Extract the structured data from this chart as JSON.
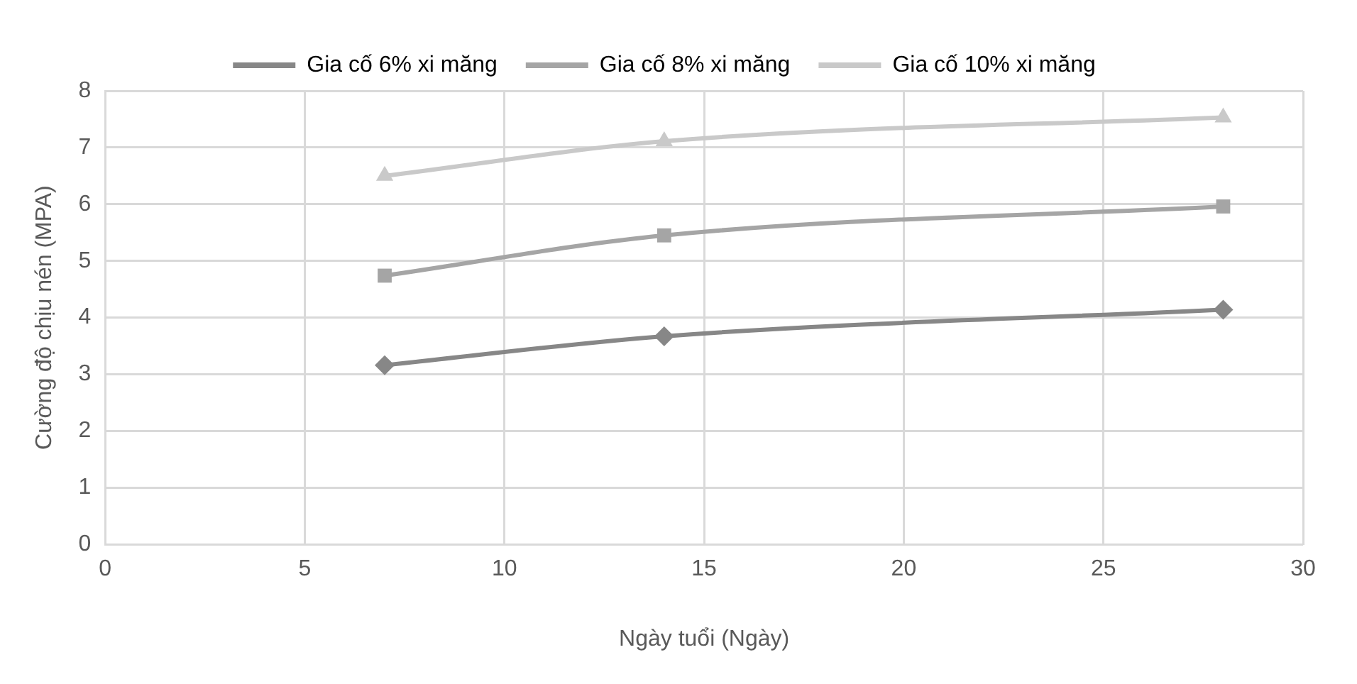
{
  "chart_data": {
    "type": "line",
    "xlabel": "Ngày tuổi (Ngày)",
    "ylabel": "Cường độ chịu nén (MPA)",
    "x": [
      7,
      14,
      28
    ],
    "xlim": [
      0,
      30
    ],
    "xticks": [
      0,
      5,
      10,
      15,
      20,
      25,
      30
    ],
    "ylim": [
      0,
      8
    ],
    "yticks": [
      0,
      1,
      2,
      3,
      4,
      5,
      6,
      7,
      8
    ],
    "grid": true,
    "legend": "top",
    "series": [
      {
        "name": "Gia cố 6% xi măng",
        "color": "#878787",
        "marker": "diamond",
        "values": [
          3.16,
          3.67,
          4.14
        ]
      },
      {
        "name": "Gia cố 8% xi măng",
        "color": "#a5a5a5",
        "marker": "square",
        "values": [
          4.74,
          5.45,
          5.96
        ]
      },
      {
        "name": "Gia cố 10% xi măng",
        "color": "#c9c9c9",
        "marker": "triangle",
        "values": [
          6.5,
          7.11,
          7.53
        ]
      }
    ]
  }
}
